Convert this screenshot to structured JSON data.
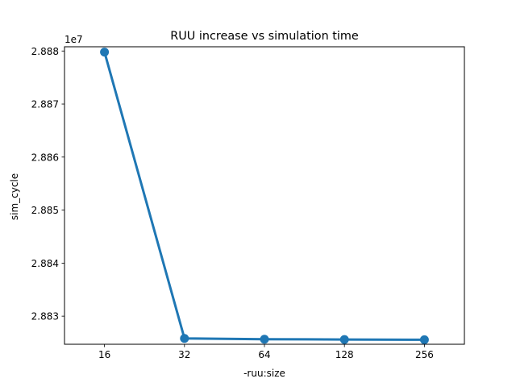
{
  "chart_data": {
    "type": "line",
    "title": "RUU increase vs simulation time",
    "xlabel": "-ruu:size",
    "ylabel": "sim_cycle",
    "y_offset_label": "1e7",
    "categories": [
      "16",
      "32",
      "64",
      "128",
      "256"
    ],
    "series": [
      {
        "values": [
          28879800,
          28825800,
          28825650,
          28825600,
          28825550
        ],
        "color": "#1f77b4"
      }
    ],
    "yticks": [
      2.883,
      2.884,
      2.885,
      2.886,
      2.887,
      2.888
    ],
    "ytick_labels": [
      "2.883",
      "2.884",
      "2.885",
      "2.886",
      "2.887",
      "2.888"
    ],
    "ytick_scale": 10000000,
    "ylim": [
      28824700,
      28880800
    ],
    "grid": false,
    "legend": "none"
  }
}
